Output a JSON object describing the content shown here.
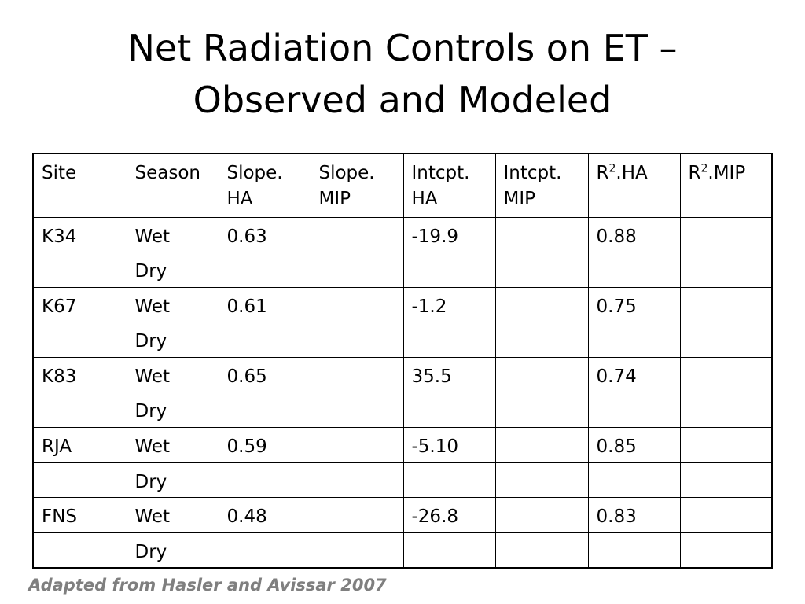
{
  "title": {
    "line1": "Net Radiation Controls on ET –",
    "line2": "Observed and Modeled"
  },
  "table": {
    "headers": [
      {
        "line1": "Site",
        "line2": ""
      },
      {
        "line1": "Season",
        "line2": ""
      },
      {
        "line1": "Slope.",
        "line2": "HA"
      },
      {
        "line1": "Slope.",
        "line2": "MIP"
      },
      {
        "line1": "Intcpt.",
        "line2": "HA"
      },
      {
        "line1": "Intcpt.",
        "line2": "MIP"
      },
      {
        "pre": "R",
        "sup": "2",
        "post": ".HA"
      },
      {
        "pre": "R",
        "sup": "2",
        "post": ".MIP"
      }
    ],
    "rows": [
      [
        "K34",
        "Wet",
        "0.63",
        "",
        "-19.9",
        "",
        "0.88",
        ""
      ],
      [
        "",
        "Dry",
        "",
        "",
        "",
        "",
        "",
        ""
      ],
      [
        "K67",
        "Wet",
        "0.61",
        "",
        "-1.2",
        "",
        "0.75",
        ""
      ],
      [
        "",
        "Dry",
        "",
        "",
        "",
        "",
        "",
        ""
      ],
      [
        "K83",
        "Wet",
        "0.65",
        "",
        "35.5",
        "",
        "0.74",
        ""
      ],
      [
        "",
        "Dry",
        "",
        "",
        "",
        "",
        "",
        ""
      ],
      [
        "RJA",
        "Wet",
        "0.59",
        "",
        "-5.10",
        "",
        "0.85",
        ""
      ],
      [
        "",
        "Dry",
        "",
        "",
        "",
        "",
        "",
        ""
      ],
      [
        "FNS",
        "Wet",
        "0.48",
        "",
        "-26.8",
        "",
        "0.83",
        ""
      ],
      [
        "",
        "Dry",
        "",
        "",
        "",
        "",
        "",
        ""
      ]
    ]
  },
  "footer": {
    "text": "Adapted from Hasler and Avissar 2007",
    "color": "#7f7f7f"
  }
}
